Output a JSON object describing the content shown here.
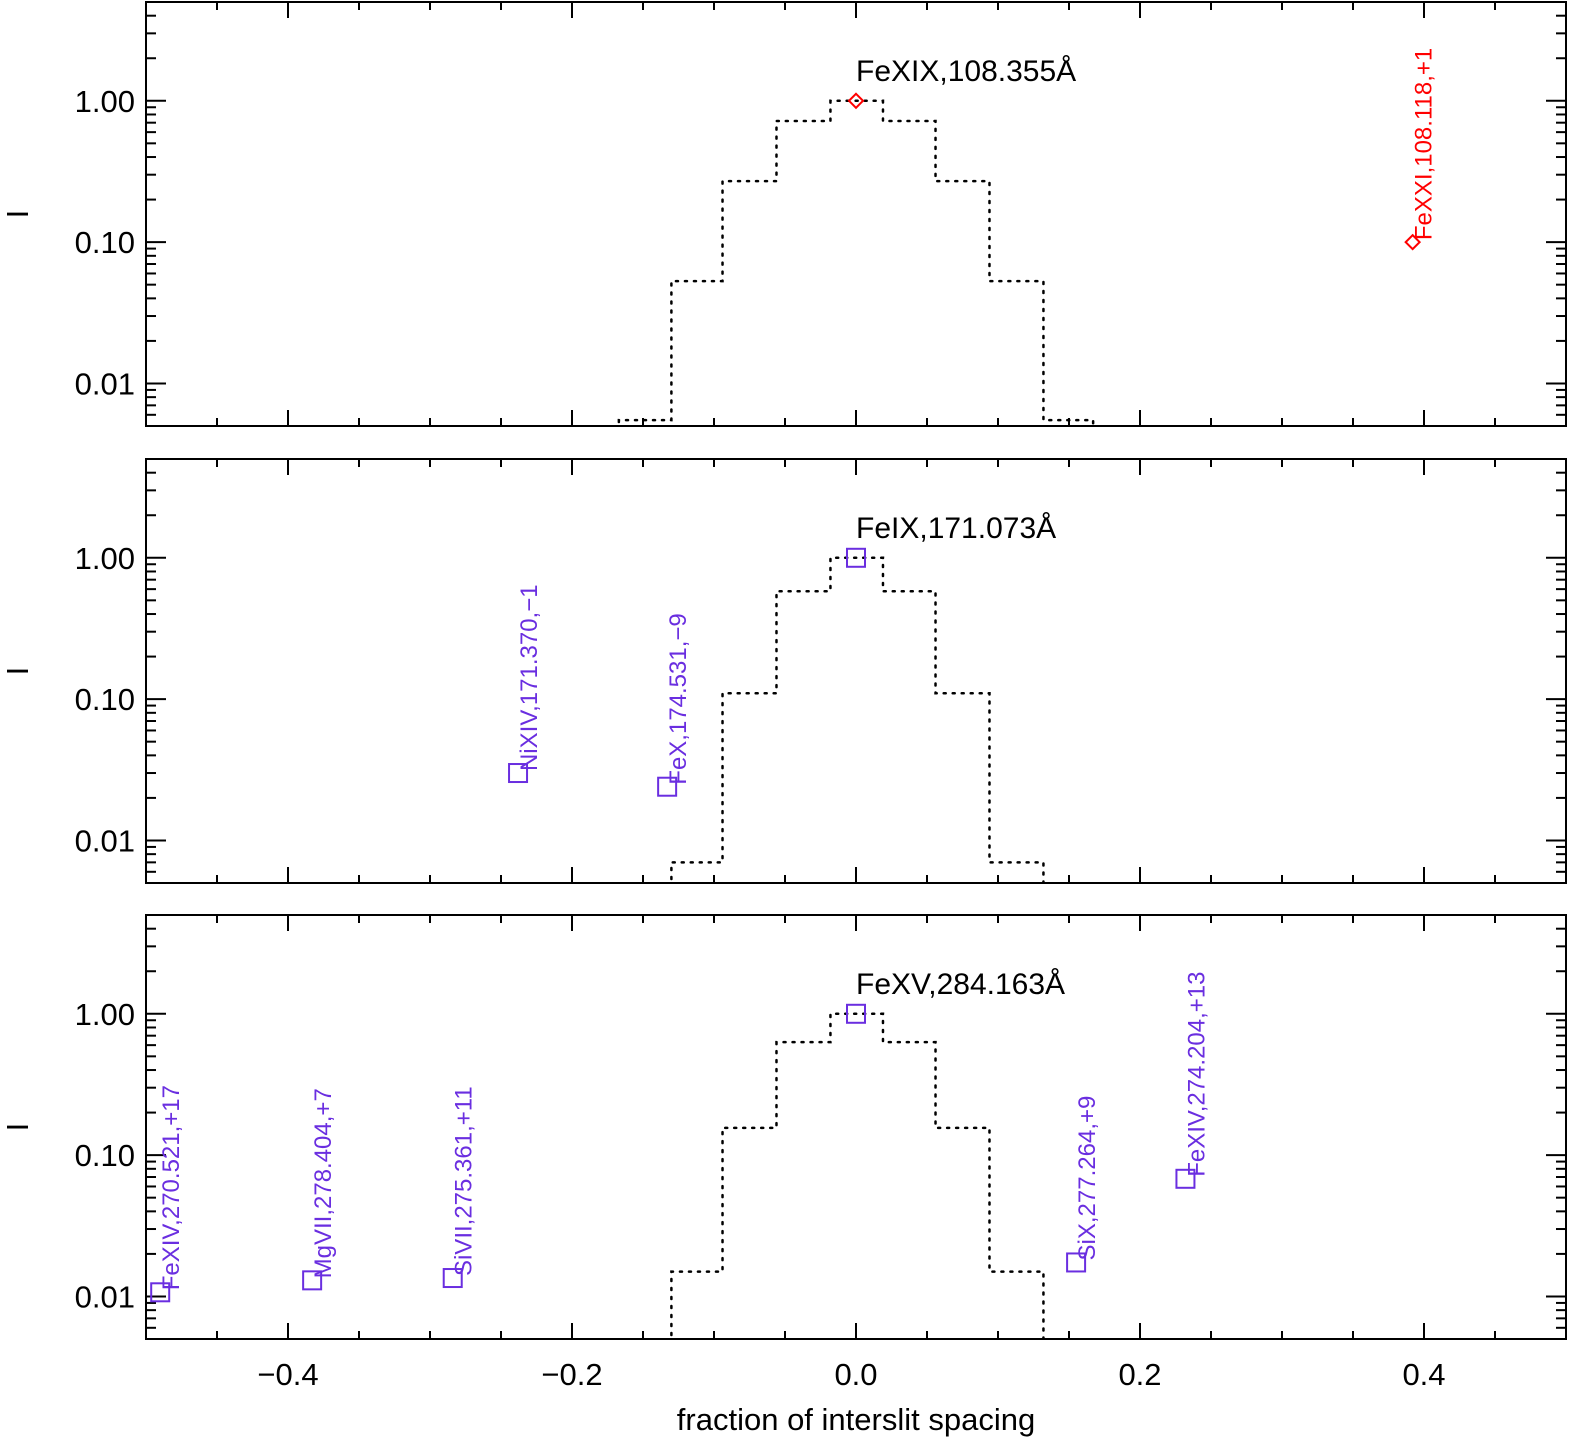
{
  "chart_data": [
    {
      "type": "line",
      "panel": "top",
      "ylabel": "I",
      "yscale": "log",
      "ylim": [
        0.005,
        5
      ],
      "xlim": [
        -0.5,
        0.5
      ],
      "yticks": [
        "1.00",
        "0.10",
        "0.01"
      ],
      "ytick_values": [
        1,
        0.1,
        0.01
      ],
      "main_line_label": "FeXIX,108.355Å",
      "histogram": {
        "style": "dotted-step",
        "edges": [
          -0.167,
          -0.13,
          -0.094,
          -0.056,
          -0.018,
          0.019,
          0.056,
          0.094,
          0.132,
          0.167
        ],
        "values": [
          0.0055,
          0.053,
          0.27,
          0.72,
          1.0,
          0.72,
          0.27,
          0.053,
          0.0055
        ]
      },
      "marker": "diamond",
      "marker_color": "#ff0000",
      "points": [
        {
          "x": 0.0,
          "y": 1.0,
          "label": ""
        },
        {
          "x": 0.392,
          "y": 0.1,
          "label": "FeXXI,108.118,+1"
        }
      ]
    },
    {
      "type": "line",
      "panel": "middle",
      "ylabel": "I",
      "yscale": "log",
      "ylim": [
        0.005,
        5
      ],
      "xlim": [
        -0.5,
        0.5
      ],
      "yticks": [
        "1.00",
        "0.10",
        "0.01"
      ],
      "ytick_values": [
        1,
        0.1,
        0.01
      ],
      "main_line_label": "FeIX,171.073Å",
      "histogram": {
        "style": "dotted-step",
        "edges": [
          -0.13,
          -0.094,
          -0.056,
          -0.018,
          0.019,
          0.056,
          0.094,
          0.132
        ],
        "values": [
          0.007,
          0.11,
          0.58,
          1.0,
          0.58,
          0.11,
          0.007
        ]
      },
      "marker": "square",
      "marker_color": "#6a2ee0",
      "points": [
        {
          "x": 0.0,
          "y": 1.0,
          "label": ""
        },
        {
          "x": -0.238,
          "y": 0.03,
          "label": "NiXIV,171.370,−1"
        },
        {
          "x": -0.133,
          "y": 0.024,
          "label": "FeX,174.531,−9"
        }
      ]
    },
    {
      "type": "line",
      "panel": "bottom",
      "ylabel": "I",
      "xlabel": "fraction of interslit spacing",
      "yscale": "log",
      "ylim": [
        0.005,
        5
      ],
      "xlim": [
        -0.5,
        0.5
      ],
      "xticks": [
        "−0.4",
        "−0.2",
        "0.0",
        "0.2",
        "0.4"
      ],
      "xtick_values": [
        -0.4,
        -0.2,
        0.0,
        0.2,
        0.4
      ],
      "yticks": [
        "1.00",
        "0.10",
        "0.01"
      ],
      "ytick_values": [
        1,
        0.1,
        0.01
      ],
      "main_line_label": "FeXV,284.163Å",
      "histogram": {
        "style": "dotted-step",
        "edges": [
          -0.13,
          -0.094,
          -0.056,
          -0.018,
          0.019,
          0.056,
          0.094,
          0.132
        ],
        "values": [
          0.015,
          0.156,
          0.63,
          1.0,
          0.63,
          0.156,
          0.015
        ]
      },
      "marker": "square",
      "marker_color": "#6a2ee0",
      "points": [
        {
          "x": 0.0,
          "y": 1.0,
          "label": ""
        },
        {
          "x": -0.49,
          "y": 0.0107,
          "label": "FeXIV,270.521,+17"
        },
        {
          "x": -0.383,
          "y": 0.013,
          "label": "MgVII,278.404,+7"
        },
        {
          "x": -0.284,
          "y": 0.0135,
          "label": "SiVII,275.361,+11"
        },
        {
          "x": 0.155,
          "y": 0.0174,
          "label": "SiX,277.264,+9"
        },
        {
          "x": 0.232,
          "y": 0.068,
          "label": "FeXIV,274.204,+13"
        }
      ]
    }
  ]
}
